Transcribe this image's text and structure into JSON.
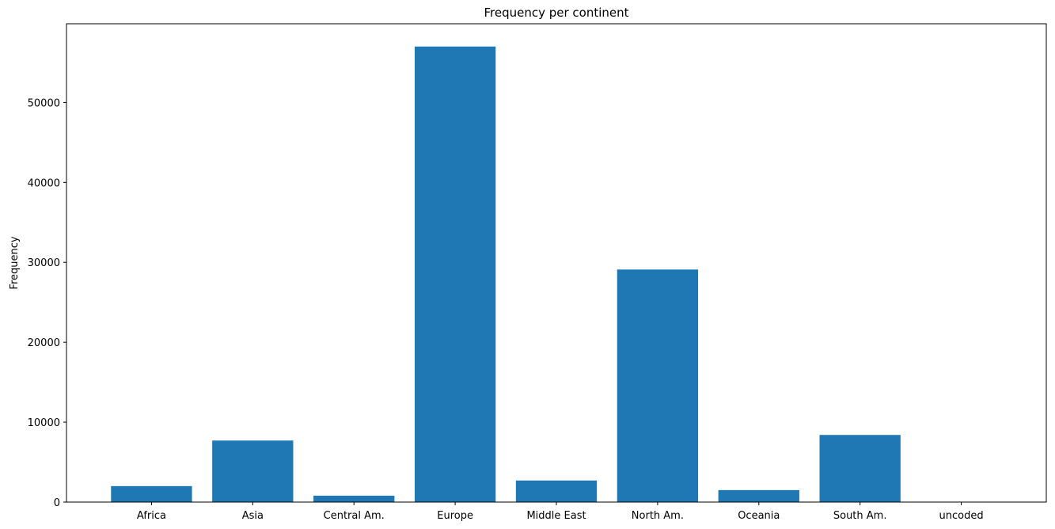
{
  "chart_data": {
    "type": "bar",
    "title": "Frequency per continent",
    "xlabel": "",
    "ylabel": "Frequency",
    "categories": [
      "Africa",
      "Asia",
      "Central Am.",
      "Europe",
      "Middle East",
      "North Am.",
      "Oceania",
      "South Am.",
      "uncoded"
    ],
    "values": [
      2000,
      7700,
      800,
      57000,
      2700,
      29100,
      1500,
      8400,
      0
    ],
    "ylim": [
      0,
      59850
    ],
    "yticks": [
      0,
      10000,
      20000,
      30000,
      40000,
      50000
    ],
    "grid": false,
    "bar_color": "#1f77b4"
  }
}
